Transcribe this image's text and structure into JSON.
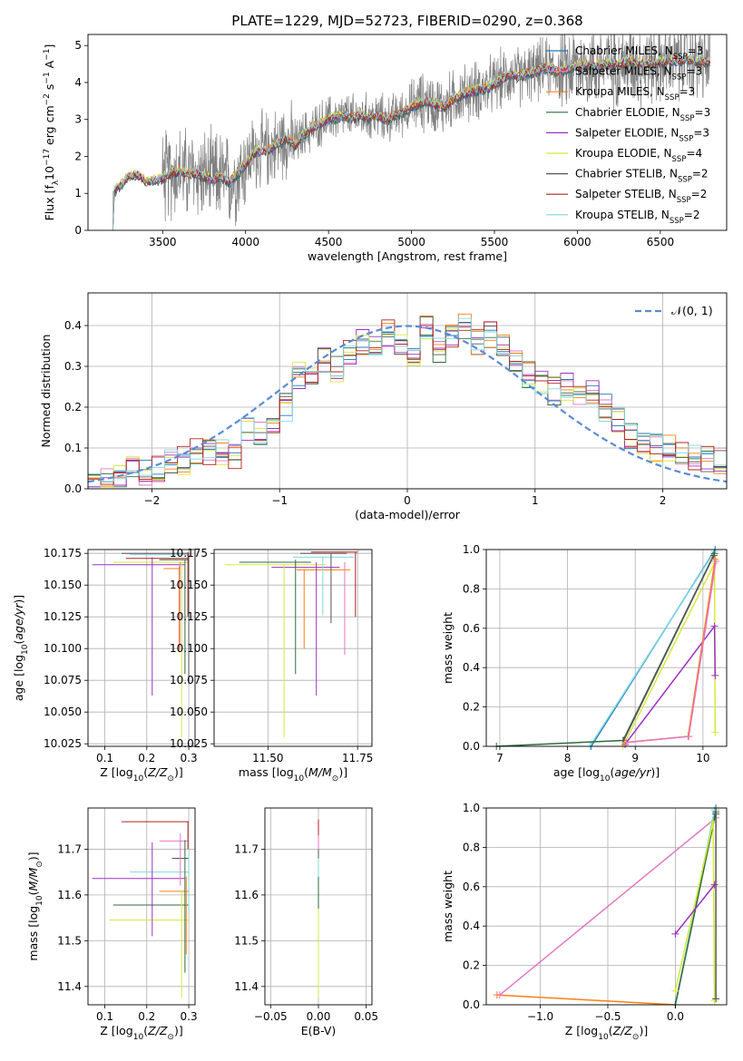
{
  "title": "PLATE=1229, MJD=52723, FIBERID=0290, z=0.368",
  "colors": {
    "chabrier_miles": "#1f77b4",
    "salpeter_miles": "#e377c2",
    "kroupa_miles": "#ff7f0e",
    "chabrier_elodie": "#2e6b3f",
    "salpeter_elodie": "#9b30c0",
    "kroupa_elodie": "#d8e83a",
    "chabrier_stelib": "#555555",
    "salpeter_stelib": "#b22222",
    "kroupa_stelib": "#7fd8e6",
    "normal": "#5b8ad6",
    "data": "#808080"
  },
  "chart_data": [
    {
      "type": "line",
      "name": "spectrum",
      "xlabel": "wavelength [Angstrom, rest frame]",
      "ylabel": "Flux [f_λ 10^-17 erg cm^-2 s^-1 A^-1]",
      "xlim": [
        3050,
        6900
      ],
      "ylim": [
        0,
        5.3
      ],
      "xticks": [
        3500,
        4000,
        4500,
        5000,
        5500,
        6000,
        6500
      ],
      "yticks": [
        0,
        1,
        2,
        3,
        4,
        5
      ],
      "grid": false,
      "legend_position": "lower-right",
      "legend": [
        {
          "label": "Chabrier MILES, N",
          "sub": "SSP",
          "suffix": "=3",
          "color": "chabrier_miles"
        },
        {
          "label": "Salpeter MILES, N",
          "sub": "SSP",
          "suffix": "=3",
          "color": "salpeter_miles"
        },
        {
          "label": "Kroupa MILES, N",
          "sub": "SSP",
          "suffix": "=3",
          "color": "kroupa_miles"
        },
        {
          "label": "Chabrier ELODIE, N",
          "sub": "SSP",
          "suffix": "=3",
          "color": "chabrier_elodie"
        },
        {
          "label": "Salpeter ELODIE, N",
          "sub": "SSP",
          "suffix": "=3",
          "color": "salpeter_elodie"
        },
        {
          "label": "Kroupa ELODIE, N",
          "sub": "SSP",
          "suffix": "=4",
          "color": "kroupa_elodie"
        },
        {
          "label": "Chabrier STELIB, N",
          "sub": "SSP",
          "suffix": "=2",
          "color": "chabrier_stelib"
        },
        {
          "label": "Salpeter STELIB, N",
          "sub": "SSP",
          "suffix": "=2",
          "color": "salpeter_stelib"
        },
        {
          "label": "Kroupa STELIB, N",
          "sub": "SSP",
          "suffix": "=2",
          "color": "kroupa_stelib"
        }
      ],
      "model_continuum": [
        [
          3200,
          1.0
        ],
        [
          3250,
          1.25
        ],
        [
          3300,
          1.45
        ],
        [
          3350,
          1.5
        ],
        [
          3400,
          1.3
        ],
        [
          3450,
          1.35
        ],
        [
          3500,
          1.4
        ],
        [
          3550,
          1.55
        ],
        [
          3600,
          1.6
        ],
        [
          3650,
          1.5
        ],
        [
          3700,
          1.55
        ],
        [
          3750,
          1.45
        ],
        [
          3800,
          1.4
        ],
        [
          3850,
          1.45
        ],
        [
          3900,
          1.3
        ],
        [
          3950,
          1.5
        ],
        [
          4000,
          1.8
        ],
        [
          4050,
          2.1
        ],
        [
          4100,
          2.15
        ],
        [
          4150,
          2.2
        ],
        [
          4200,
          2.35
        ],
        [
          4250,
          2.5
        ],
        [
          4300,
          2.3
        ],
        [
          4350,
          2.6
        ],
        [
          4400,
          2.75
        ],
        [
          4450,
          2.9
        ],
        [
          4500,
          3.0
        ],
        [
          4550,
          3.05
        ],
        [
          4600,
          3.1
        ],
        [
          4650,
          3.05
        ],
        [
          4700,
          3.1
        ],
        [
          4750,
          3.05
        ],
        [
          4800,
          3.1
        ],
        [
          4850,
          3.0
        ],
        [
          4900,
          3.1
        ],
        [
          4950,
          3.2
        ],
        [
          5000,
          3.35
        ],
        [
          5050,
          3.45
        ],
        [
          5100,
          3.5
        ],
        [
          5150,
          3.4
        ],
        [
          5200,
          3.35
        ],
        [
          5250,
          3.55
        ],
        [
          5300,
          3.65
        ],
        [
          5350,
          3.75
        ],
        [
          5400,
          3.8
        ],
        [
          5450,
          3.85
        ],
        [
          5500,
          3.95
        ],
        [
          5550,
          4.1
        ],
        [
          5600,
          4.2
        ],
        [
          5650,
          4.15
        ],
        [
          5700,
          4.25
        ],
        [
          5750,
          4.3
        ],
        [
          5800,
          4.4
        ],
        [
          5850,
          4.35
        ],
        [
          5900,
          4.3
        ],
        [
          5950,
          4.4
        ],
        [
          6000,
          4.45
        ],
        [
          6100,
          4.45
        ],
        [
          6200,
          4.5
        ],
        [
          6300,
          4.55
        ],
        [
          6400,
          4.5
        ],
        [
          6500,
          4.55
        ],
        [
          6600,
          4.6
        ],
        [
          6700,
          4.6
        ],
        [
          6800,
          4.55
        ]
      ],
      "data_start": 3200,
      "data_end": 6800
    },
    {
      "type": "histogram",
      "name": "residuals",
      "xlabel": "(data-model)/error",
      "ylabel": "Normed distribution",
      "xlim": [
        -2.5,
        2.5
      ],
      "ylim": [
        0,
        0.48
      ],
      "xticks": [
        -2,
        -1,
        0,
        1,
        2
      ],
      "yticks": [
        0.0,
        0.1,
        0.2,
        0.3,
        0.4
      ],
      "grid": true,
      "legend_position": "top-right",
      "legend": [
        {
          "label": "𝒩(0, 1)",
          "color": "normal",
          "style": "dashed"
        }
      ],
      "bin_edges_start": -2.5,
      "bin_width": 0.1,
      "hist_mean": [
        0.02,
        0.02,
        0.03,
        0.045,
        0.04,
        0.05,
        0.065,
        0.07,
        0.095,
        0.085,
        0.09,
        0.08,
        0.15,
        0.13,
        0.15,
        0.2,
        0.28,
        0.29,
        0.32,
        0.29,
        0.33,
        0.36,
        0.34,
        0.38,
        0.35,
        0.31,
        0.39,
        0.34,
        0.37,
        0.4,
        0.36,
        0.38,
        0.35,
        0.31,
        0.28,
        0.26,
        0.24,
        0.25,
        0.22,
        0.23,
        0.2,
        0.17,
        0.13,
        0.11,
        0.1,
        0.1,
        0.08,
        0.08,
        0.07,
        0.07
      ]
    },
    {
      "type": "scatter",
      "name": "age-vs-Z",
      "xlabel": "Z [log10(Z/Z⊙)]",
      "ylabel": "age [log10(age/yr)]",
      "xlim": [
        0.06,
        0.315
      ],
      "ylim": [
        10.023,
        10.178
      ],
      "xticks": [
        0.1,
        0.2,
        0.3
      ],
      "yticks": [
        10.025,
        10.05,
        10.075,
        10.1,
        10.125,
        10.15,
        10.175
      ],
      "grid": true
    },
    {
      "type": "scatter",
      "name": "age-vs-mass",
      "xlabel": "mass [log10(M/M⊙)]",
      "ylabel": "",
      "xlim": [
        11.35,
        11.79
      ],
      "ylim": [
        10.023,
        10.178
      ],
      "xticks": [
        11.5,
        11.75
      ],
      "yticks": [
        10.025,
        10.05,
        10.075,
        10.1,
        10.125,
        10.15,
        10.175
      ],
      "grid": true
    },
    {
      "type": "line",
      "name": "mass-weight-vs-age",
      "xlabel": "age [log10(age/yr)]",
      "ylabel": "mass weight",
      "xlim": [
        6.8,
        10.35
      ],
      "ylim": [
        0.0,
        1.0
      ],
      "xticks": [
        7,
        8,
        9,
        10
      ],
      "yticks": [
        0.0,
        0.2,
        0.4,
        0.6,
        0.8,
        1.0
      ],
      "grid": true
    },
    {
      "type": "scatter",
      "name": "mass-vs-Z",
      "xlabel": "Z [log10(Z/Z⊙)]",
      "ylabel": "mass [log10(M/M⊙)]",
      "xlim": [
        0.06,
        0.315
      ],
      "ylim": [
        11.36,
        11.79
      ],
      "xticks": [
        0.1,
        0.2,
        0.3
      ],
      "yticks": [
        11.4,
        11.5,
        11.6,
        11.7
      ],
      "grid": true
    },
    {
      "type": "scatter",
      "name": "mass-vs-ebv",
      "xlabel": "E(B-V)",
      "ylabel": "",
      "xlim": [
        -0.056,
        0.056
      ],
      "ylim": [
        11.36,
        11.79
      ],
      "xticks": [
        -0.05,
        0.0,
        0.05
      ],
      "yticks": [
        11.4,
        11.5,
        11.6,
        11.7
      ],
      "grid": true
    },
    {
      "type": "line",
      "name": "mass-weight-vs-Z",
      "xlabel": "Z [log10(Z/Z⊙)]",
      "ylabel": "mass weight",
      "xlim": [
        -1.4,
        0.38
      ],
      "ylim": [
        0.0,
        1.0
      ],
      "xticks": [
        -1.0,
        -0.5,
        0.0
      ],
      "yticks": [
        0.0,
        0.2,
        0.4,
        0.6,
        0.8,
        1.0
      ],
      "grid": true
    }
  ]
}
